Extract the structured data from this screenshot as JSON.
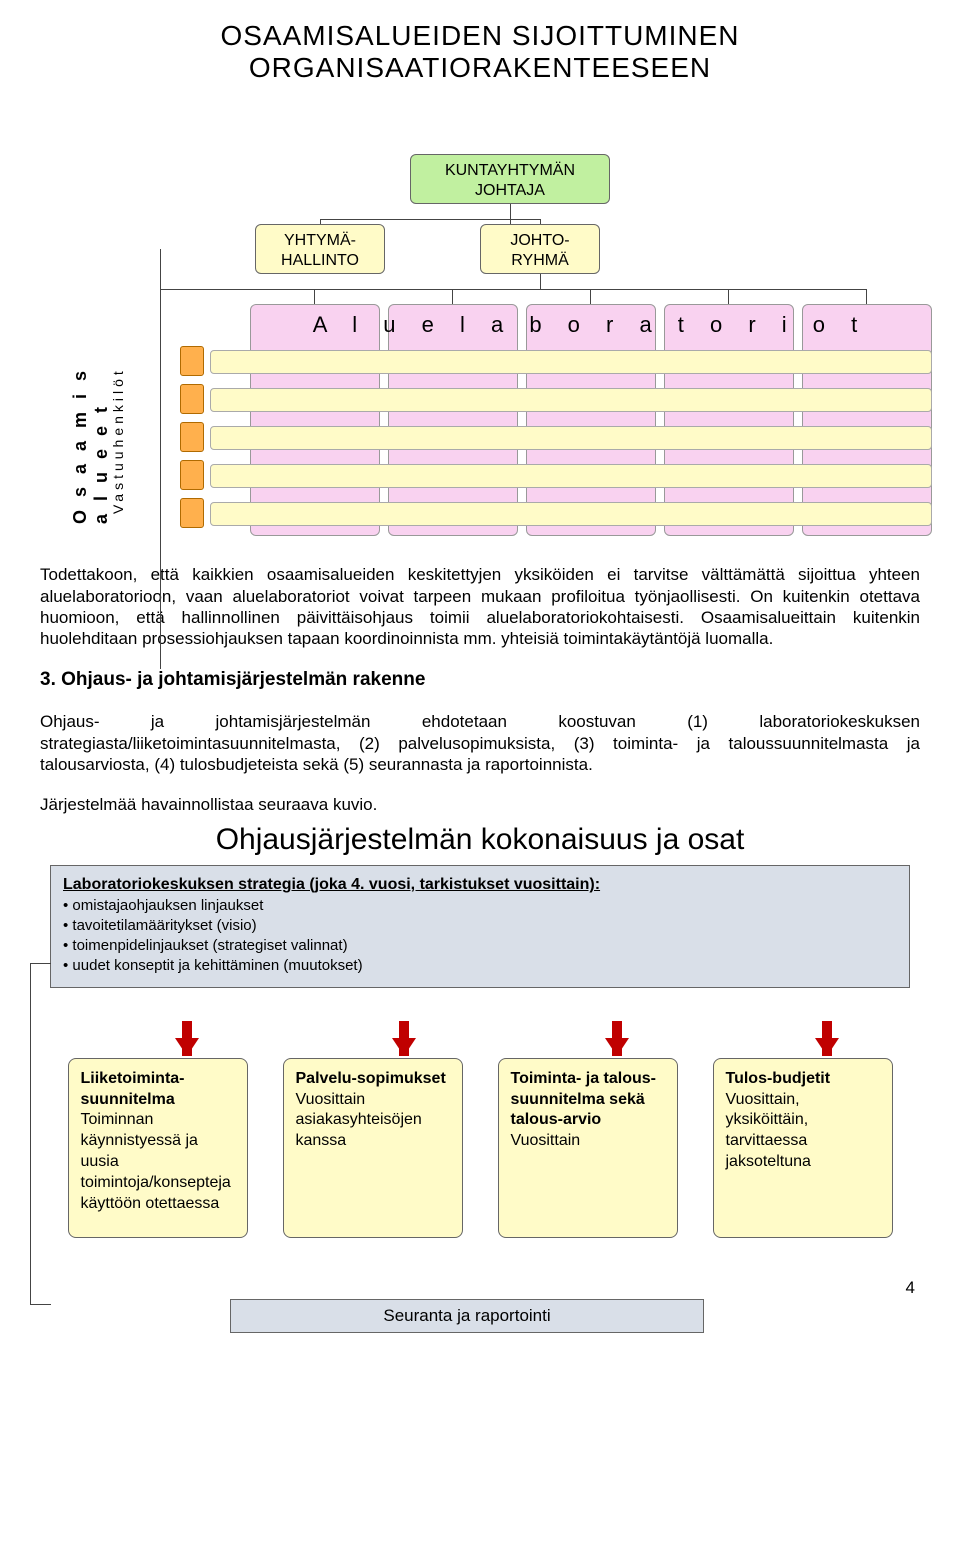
{
  "title_line1": "OSAAMISALUEIDEN SIJOITTUMINEN",
  "title_line2": "ORGANISAATIORAKENTEESEEN",
  "diagram1": {
    "kunta": "KUNTAYHTYMÄN JOHTAJA",
    "ythyma": "YHTYMÄ-HALLINTO",
    "johto": "JOHTO-RYHMÄ",
    "alue_label": "A l u e l a b o r a t o r i o t",
    "side_osa": "O s a a m i s a l u e e t",
    "side_vast": "Vastuuhenkilöt",
    "colors": {
      "green": "#c1f0a0",
      "yellow": "#fffbc8",
      "pink": "#f9d2f0",
      "orange": "#ffb04d"
    }
  },
  "para1": "Todettakoon, että kaikkien osaamisalueiden keskitettyjen yksiköiden ei tarvitse välttämättä sijoittua yhteen aluelaboratorioon, vaan aluelaboratoriot voivat tarpeen mukaan profiloitua työnjaollisesti. On kuitenkin otettava huomioon, että hallinnollinen päivittäisohjaus toimii aluelaboratoriokohtaisesti. Osaamisalueittain kuitenkin huolehditaan prosessiohjauksen tapaan koordinoinnista mm. yhteisiä toimintakäytäntöjä luomalla.",
  "section3_heading": "3.  Ohjaus- ja johtamisjärjestelmän rakenne",
  "para2": "Ohjaus- ja johtamisjärjestelmän ehdotetaan koostuvan (1) laboratoriokeskuksen strategiasta/liiketoimintasuunnitelmasta, (2) palvelusopimuksista, (3) toiminta- ja taloussuunnitelmasta ja talousarviosta, (4) tulosbudjeteista sekä (5) seurannasta ja raportoinnista.",
  "para3": "Järjestelmää havainnollistaa seuraava kuvio.",
  "diagram2": {
    "title": "Ohjausjärjestelmän kokonaisuus ja osat",
    "strategy_header": "Laboratoriokeskuksen strategia (joka 4. vuosi, tarkistukset vuosittain):",
    "strategy_bullets": [
      "omistajaohjauksen linjaukset",
      "tavoitetilamääritykset (visio)",
      "toimenpidelinjaukset (strategiset valinnat)",
      "uudet konseptit ja kehittäminen (muutokset)"
    ],
    "plans": [
      {
        "title": "Liiketoiminta-suunnitelma",
        "body": "Toiminnan käynnistyessä ja uusia toimintoja/konsepteja käyttöön otettaessa"
      },
      {
        "title": "Palvelu-sopimukset",
        "body": "Vuosittain asiakasyhteisöjen kanssa"
      },
      {
        "title": "Toiminta- ja talous-suunnitelma sekä talous-arvio",
        "body": "Vuosittain"
      },
      {
        "title": "Tulos-budjetit",
        "body": "Vuosittain, yksiköittäin, tarvittaessa jaksoteltuna"
      }
    ],
    "seuranta": "Seuranta ja raportointi",
    "arrow_color": "#c00000",
    "strategy_bg": "#d9dfe8",
    "plan_bg": "#fffbc8"
  },
  "page_number": "4"
}
